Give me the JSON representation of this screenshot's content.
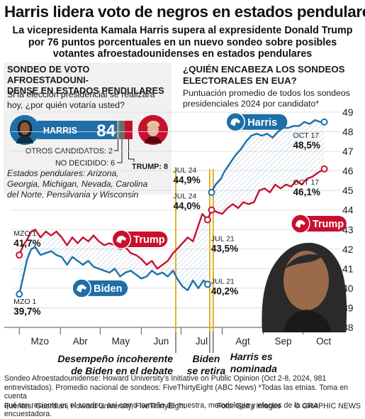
{
  "header": {
    "title": "Harris lidera voto de negros en estados pendulares",
    "subtitle_line1": "La vicepresidenta Kamala Harris supera al expresidente Donald Trump",
    "subtitle_line2": "por 76 puntos porcentuales en un nuevo sondeo sobre posibles",
    "subtitle_line3": "votantes afroestadounidenses en estados pendulares"
  },
  "poll": {
    "heading_line1": "SONDEO DE VOTO AFROESTADOUNI-",
    "heading_line2": "DENSE EN ESTADOS PENDULARES",
    "question_line1": "Si la elección presidencial se realizara",
    "question_line2": "hoy, ¿por quién votaría usted?",
    "harris_label": "HARRIS",
    "harris_value": "84",
    "others_label": "OTROS CANDIDATOS: 2",
    "undecided_label": "NO DECIDIDO: 6",
    "trump_label": "TRUMP: 8",
    "states_line1": "Estados pendulares: Arizona,",
    "states_line2": "Georgia, Michigan, Nevada, Carolina",
    "states_line3": "del Norte, Pensilvania y Wisconsin",
    "bar_shares": {
      "harris": 84,
      "others": 2,
      "undecided": 6,
      "trump": 8
    }
  },
  "chart_header": {
    "title_line1": "¿QUIÉN ENCABEZA LOS SONDEOS",
    "title_line2": "ELECTORALES EN EUA?",
    "sub_line1": "Puntuación promedio de todos los sondeos",
    "sub_line2": "presidenciales 2024 por candidato*"
  },
  "chart_data": {
    "type": "line",
    "x_range": [
      "2024-02-24",
      "2024-10-29"
    ],
    "ylim": [
      38,
      49
    ],
    "yticks": [
      "38",
      "39",
      "40",
      "41",
      "42",
      "43",
      "44",
      "45",
      "46",
      "47",
      "48",
      "49"
    ],
    "months": [
      "Mzo",
      "Abr",
      "May",
      "Jun",
      "Jul",
      "Agt",
      "Sep",
      "Oct"
    ],
    "month_dates": [
      "2024-03-01",
      "2024-04-01",
      "2024-05-01",
      "2024-06-01",
      "2024-07-01",
      "2024-08-01",
      "2024-09-01",
      "2024-10-01"
    ],
    "series": [
      {
        "name": "Biden",
        "color": "#1e6fa8",
        "points": [
          [
            "2024-03-01",
            39.7
          ],
          [
            "2024-03-04",
            40.6
          ],
          [
            "2024-03-07",
            41.5
          ],
          [
            "2024-03-10",
            42.0
          ],
          [
            "2024-03-13",
            42.1
          ],
          [
            "2024-03-17",
            41.7
          ],
          [
            "2024-03-21",
            41.8
          ],
          [
            "2024-03-25",
            41.9
          ],
          [
            "2024-03-29",
            41.7
          ],
          [
            "2024-04-02",
            41.6
          ],
          [
            "2024-04-06",
            41.2
          ],
          [
            "2024-04-10",
            41.6
          ],
          [
            "2024-04-14",
            41.4
          ],
          [
            "2024-04-18",
            41.2
          ],
          [
            "2024-04-22",
            41.4
          ],
          [
            "2024-04-26",
            41.1
          ],
          [
            "2024-04-30",
            41.0
          ],
          [
            "2024-05-04",
            40.9
          ],
          [
            "2024-05-08",
            40.8
          ],
          [
            "2024-05-12",
            41.0
          ],
          [
            "2024-05-16",
            40.6
          ],
          [
            "2024-05-20",
            40.8
          ],
          [
            "2024-05-24",
            40.9
          ],
          [
            "2024-05-28",
            40.7
          ],
          [
            "2024-06-01",
            40.5
          ],
          [
            "2024-06-05",
            40.6
          ],
          [
            "2024-06-09",
            40.9
          ],
          [
            "2024-06-13",
            40.7
          ],
          [
            "2024-06-17",
            40.8
          ],
          [
            "2024-06-21",
            40.6
          ],
          [
            "2024-06-25",
            40.9
          ],
          [
            "2024-06-28",
            40.5
          ],
          [
            "2024-07-02",
            40.1
          ],
          [
            "2024-07-06",
            39.9
          ],
          [
            "2024-07-10",
            40.4
          ],
          [
            "2024-07-14",
            40.0
          ],
          [
            "2024-07-18",
            40.4
          ],
          [
            "2024-07-21",
            40.2
          ]
        ]
      },
      {
        "name": "Trump",
        "color": "#c8102e",
        "points": [
          [
            "2024-03-01",
            41.7
          ],
          [
            "2024-03-04",
            42.2
          ],
          [
            "2024-03-07",
            42.5
          ],
          [
            "2024-03-10",
            42.9
          ],
          [
            "2024-03-13",
            43.0
          ],
          [
            "2024-03-17",
            42.6
          ],
          [
            "2024-03-21",
            42.9
          ],
          [
            "2024-03-25",
            42.7
          ],
          [
            "2024-03-29",
            42.9
          ],
          [
            "2024-04-02",
            42.6
          ],
          [
            "2024-04-06",
            42.2
          ],
          [
            "2024-04-10",
            42.6
          ],
          [
            "2024-04-14",
            42.3
          ],
          [
            "2024-04-18",
            42.6
          ],
          [
            "2024-04-22",
            42.4
          ],
          [
            "2024-04-26",
            42.7
          ],
          [
            "2024-04-30",
            42.4
          ],
          [
            "2024-05-04",
            42.2
          ],
          [
            "2024-05-08",
            42.3
          ],
          [
            "2024-05-12",
            42.2
          ],
          [
            "2024-05-16",
            42.0
          ],
          [
            "2024-05-20",
            42.1
          ],
          [
            "2024-05-24",
            41.8
          ],
          [
            "2024-05-28",
            41.7
          ],
          [
            "2024-06-01",
            41.5
          ],
          [
            "2024-06-05",
            41.2
          ],
          [
            "2024-06-09",
            41.4
          ],
          [
            "2024-06-13",
            41.0
          ],
          [
            "2024-06-17",
            41.2
          ],
          [
            "2024-06-21",
            41.4
          ],
          [
            "2024-06-25",
            41.8
          ],
          [
            "2024-06-28",
            42.0
          ],
          [
            "2024-07-02",
            42.3
          ],
          [
            "2024-07-06",
            42.6
          ],
          [
            "2024-07-10",
            42.4
          ],
          [
            "2024-07-14",
            43.2
          ],
          [
            "2024-07-17",
            43.8
          ],
          [
            "2024-07-21",
            43.5
          ],
          [
            "2024-07-24",
            44.0
          ],
          [
            "2024-07-28",
            43.9
          ],
          [
            "2024-08-01",
            43.8
          ],
          [
            "2024-08-05",
            44.1
          ],
          [
            "2024-08-09",
            44.3
          ],
          [
            "2024-08-13",
            44.1
          ],
          [
            "2024-08-17",
            44.4
          ],
          [
            "2024-08-21",
            44.3
          ],
          [
            "2024-08-25",
            44.4
          ],
          [
            "2024-08-29",
            45.0
          ],
          [
            "2024-09-02",
            45.1
          ],
          [
            "2024-09-06",
            44.9
          ],
          [
            "2024-09-10",
            45.3
          ],
          [
            "2024-09-14",
            45.1
          ],
          [
            "2024-09-18",
            45.3
          ],
          [
            "2024-09-22",
            45.2
          ],
          [
            "2024-09-26",
            45.5
          ],
          [
            "2024-09-30",
            45.3
          ],
          [
            "2024-10-04",
            45.6
          ],
          [
            "2024-10-08",
            45.7
          ],
          [
            "2024-10-12",
            45.9
          ],
          [
            "2024-10-17",
            46.1
          ]
        ]
      },
      {
        "name": "Harris",
        "color": "#1e6fa8",
        "points": [
          [
            "2024-07-24",
            44.9
          ],
          [
            "2024-07-27",
            45.3
          ],
          [
            "2024-07-31",
            45.6
          ],
          [
            "2024-08-03",
            46.0
          ],
          [
            "2024-08-07",
            46.4
          ],
          [
            "2024-08-11",
            46.8
          ],
          [
            "2024-08-15",
            47.1
          ],
          [
            "2024-08-19",
            47.5
          ],
          [
            "2024-08-23",
            47.8
          ],
          [
            "2024-08-27",
            47.9
          ],
          [
            "2024-08-31",
            47.8
          ],
          [
            "2024-09-04",
            47.9
          ],
          [
            "2024-09-08",
            47.7
          ],
          [
            "2024-09-12",
            48.0
          ],
          [
            "2024-09-16",
            48.2
          ],
          [
            "2024-09-20",
            48.2
          ],
          [
            "2024-09-24",
            48.3
          ],
          [
            "2024-09-28",
            48.3
          ],
          [
            "2024-10-02",
            48.5
          ],
          [
            "2024-10-06",
            48.4
          ],
          [
            "2024-10-10",
            48.6
          ],
          [
            "2024-10-14",
            48.5
          ],
          [
            "2024-10-17",
            48.5
          ]
        ]
      }
    ],
    "callouts": [
      {
        "line1": "MZO 1",
        "line2": "41,7%",
        "date": "2024-03-01",
        "value": 41.7,
        "dot_color": "#c8102e",
        "text_pos": "above"
      },
      {
        "line1": "MZO 1",
        "line2": "39,7%",
        "date": "2024-03-01",
        "value": 39.7,
        "dot_color": "#1e6fa8",
        "text_pos": "below"
      },
      {
        "line1": "JUL 24",
        "line2": "44,9%",
        "date": "2024-07-24",
        "value": 44.9,
        "dot_color": "#1e6fa8",
        "text_pos": "left-up"
      },
      {
        "line1": "JUL 24",
        "line2": "44,0%",
        "date": "2024-07-24",
        "value": 44.0,
        "dot_color": "#c8102e",
        "text_pos": "left-down"
      },
      {
        "line1": "JUL 21",
        "line2": "43,5%",
        "date": "2024-07-21",
        "value": 43.5,
        "dot_color": "#c8102e",
        "text_pos": "right-below"
      },
      {
        "line1": "JUL 21",
        "line2": "40,2%",
        "date": "2024-07-21",
        "value": 40.2,
        "dot_color": "#1e6fa8",
        "text_pos": "right"
      },
      {
        "line1": "OCT 17",
        "line2": "48,5%",
        "date": "2024-10-17",
        "value": 48.5,
        "dot_color": "#1e6fa8",
        "text_pos": "below-left"
      },
      {
        "line1": "OCT 17",
        "line2": "46,1%",
        "date": "2024-10-17",
        "value": 46.1,
        "dot_color": "#c8102e",
        "text_pos": "below-left"
      }
    ],
    "series_tags": [
      {
        "label": "Biden",
        "date": "2024-04-17",
        "value": 40.0,
        "color": "#1e6fa8"
      },
      {
        "label": "Trump",
        "date": "2024-05-17",
        "value": 42.5,
        "color": "#c8102e"
      },
      {
        "label": "Harris",
        "date": "2024-08-11",
        "value": 48.5,
        "color": "#1e6fa8"
      },
      {
        "label": "Trump",
        "date": "2024-09-29",
        "value": 43.3,
        "color": "#c8102e"
      }
    ],
    "events": [
      {
        "date": "2024-06-27",
        "line1": "Desempeño incoherente",
        "line2": "de Biden en el debate",
        "color": "#d4a000"
      },
      {
        "date": "2024-07-21",
        "line1": "Biden",
        "line2": "se retira",
        "color": "#d4a000"
      },
      {
        "date": "2024-07-22",
        "line1": "Harris es",
        "line2": "nominada",
        "color": "#d4a000"
      }
    ]
  },
  "footer": {
    "note_line1": "Sondeo Afroestadounidense: Howard University's Initiative on Public Opinion (Oct 2-8, 2024, 981",
    "note_line2": "entrevistados). Promedio nacional de sondeos: FiveThirtyEight (ABC News)  *Todas las etnias. Toma en cuenta",
    "note_line3": "qué tan reciente es el sondeo, así como tamaño de muestra, metodología y efectos de la casa encuestadora.",
    "sources": "Fuentes: Guardian, Howard University, FiveThirtyEight",
    "photo": "Foto: Getty Images",
    "credit": "© GRAPHIC NEWS"
  }
}
